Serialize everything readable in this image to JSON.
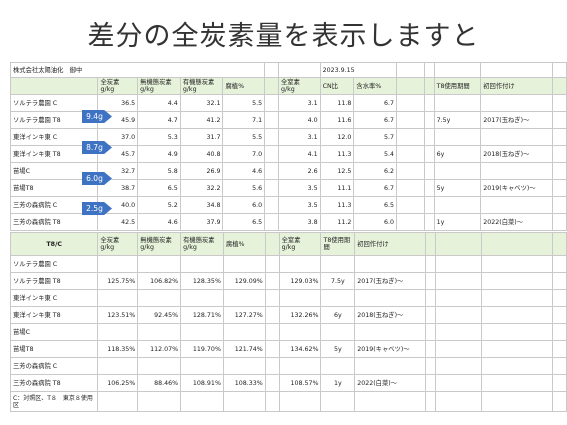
{
  "title": "差分の全炭素量を表示しますと",
  "sheet1": {
    "company": "株式会社太陽油化　御中",
    "date": "2023.9.15",
    "headers": [
      "",
      "全炭素\ng/kg",
      "無機態炭素\ng/kg",
      "有機態炭素\ng/kg",
      "腐植%",
      "",
      "全窒素\ng/kg",
      "CN比",
      "含水率%",
      "",
      "",
      "T8使用期間",
      "初回作付け",
      ""
    ],
    "rows": [
      {
        "name": "ソルテラ農園 C",
        "c": "36.5",
        "ic": "4.4",
        "oc": "32.1",
        "humus": "5.5",
        "n": "3.1",
        "cn": "11.8",
        "water": "6.7",
        "period": "",
        "first": ""
      },
      {
        "name": "ソルテラ農園 T8",
        "c": "45.9",
        "ic": "4.7",
        "oc": "41.2",
        "humus": "7.1",
        "n": "4.0",
        "cn": "11.6",
        "water": "6.7",
        "period": "7.5y",
        "first": "2017(玉ねぎ)〜"
      },
      {
        "name": "東洋インキ東 C",
        "c": "37.0",
        "ic": "5.3",
        "oc": "31.7",
        "humus": "5.5",
        "n": "3.1",
        "cn": "12.0",
        "water": "5.7",
        "period": "",
        "first": ""
      },
      {
        "name": "東洋インキ東 T8",
        "c": "45.7",
        "ic": "4.9",
        "oc": "40.8",
        "humus": "7.0",
        "n": "4.1",
        "cn": "11.3",
        "water": "5.4",
        "period": "6y",
        "first": "2018(玉ねぎ)〜"
      },
      {
        "name": "苗場C",
        "c": "32.7",
        "ic": "5.8",
        "oc": "26.9",
        "humus": "4.6",
        "n": "2.6",
        "cn": "12.5",
        "water": "6.2",
        "period": "",
        "first": ""
      },
      {
        "name": "苗場T8",
        "c": "38.7",
        "ic": "6.5",
        "oc": "32.2",
        "humus": "5.6",
        "n": "3.5",
        "cn": "11.1",
        "water": "6.7",
        "period": "5y",
        "first": "2019(キャベツ)〜"
      },
      {
        "name": "三芳の森病院 C",
        "c": "40.0",
        "ic": "5.2",
        "oc": "34.8",
        "humus": "6.0",
        "n": "3.5",
        "cn": "11.3",
        "water": "6.5",
        "period": "",
        "first": ""
      },
      {
        "name": "三芳の森病院 T8",
        "c": "42.5",
        "ic": "4.6",
        "oc": "37.9",
        "humus": "6.5",
        "n": "3.8",
        "cn": "11.2",
        "water": "6.0",
        "period": "1y",
        "first": "2022(白菜)〜"
      }
    ]
  },
  "arrows": [
    "9.4g",
    "8.7g",
    "6.0g",
    "2.5g"
  ],
  "sheet2": {
    "headers": [
      "T8/C",
      "全炭素\ng/kg",
      "無機態炭素\ng/kg",
      "有機態炭素\ng/kg",
      "腐植%",
      "",
      "全窒素\ng/kg",
      "T8使用期間",
      "初回作付け"
    ],
    "rows": [
      {
        "name": "ソルテラ農園 C"
      },
      {
        "name": "ソルテラ農園 T8",
        "c": "125.75%",
        "ic": "106.82%",
        "oc": "128.35%",
        "humus": "129.09%",
        "n": "129.03%",
        "period": "7.5y",
        "first": "2017(玉ねぎ)〜"
      },
      {
        "name": "東洋インキ東 C"
      },
      {
        "name": "東洋インキ東 T8",
        "c": "123.51%",
        "ic": "92.45%",
        "oc": "128.71%",
        "humus": "127.27%",
        "n": "132.26%",
        "period": "6y",
        "first": "2018(玉ねぎ)〜"
      },
      {
        "name": "苗場C"
      },
      {
        "name": "苗場T8",
        "c": "118.35%",
        "ic": "112.07%",
        "oc": "119.70%",
        "humus": "121.74%",
        "n": "134.62%",
        "period": "5y",
        "first": "2019(キャベツ)〜"
      },
      {
        "name": "三芳の森病院 C"
      },
      {
        "name": "三芳の森病院 T8",
        "c": "106.25%",
        "ic": "88.46%",
        "oc": "108.91%",
        "humus": "108.33%",
        "n": "108.57%",
        "period": "1y",
        "first": "2022(白菜)〜"
      }
    ],
    "footnote": "C：対照区、T８　東京８使用区"
  },
  "colors": {
    "header_fill": "#e6f2da",
    "arrow": "#3e73c4",
    "grid": "#c9c9c9"
  }
}
